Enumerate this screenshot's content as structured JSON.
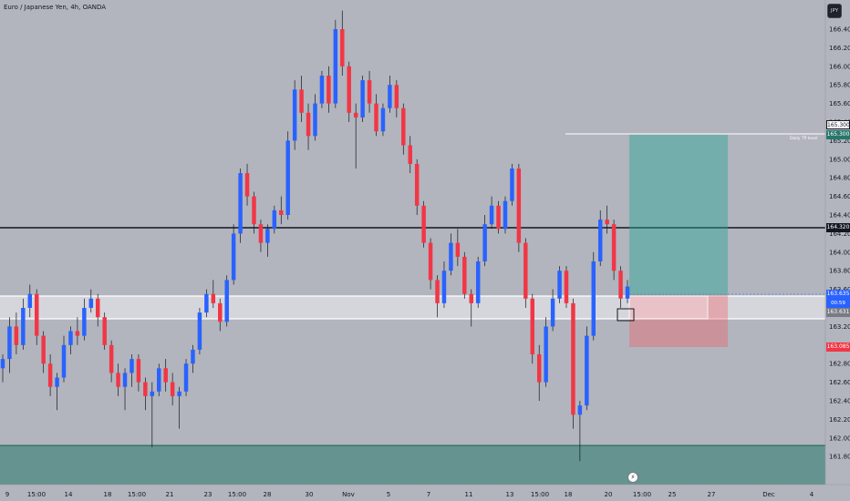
{
  "header": {
    "symbol_title": "Euro / Japanese Yen, 4h, OANDA",
    "currency_button": "JPY"
  },
  "colors": {
    "background": "#b2b5be",
    "bull_candle": "#2962ff",
    "bear_candle": "#f23645",
    "support_zone": "#26776a",
    "tp_zone": "#26a69a",
    "sl_zone": "#f7525f",
    "resistance_zone": "#ffffff"
  },
  "price_axis": {
    "labels": [
      "166.400",
      "166.200",
      "166.000",
      "165.800",
      "165.600",
      "165.400",
      "165.200",
      "165.000",
      "164.800",
      "164.600",
      "164.400",
      "164.200",
      "164.000",
      "163.800",
      "163.600",
      "163.400",
      "163.200",
      "163.000",
      "162.800",
      "162.600",
      "162.400",
      "162.200",
      "162.000",
      "161.800"
    ]
  },
  "time_axis": {
    "labels": [
      "9",
      "15:00",
      "14",
      "18",
      "15:00",
      "21",
      "23",
      "15:00",
      "28",
      "30",
      "Nov",
      "5",
      "7",
      "11",
      "13",
      "15:00",
      "18",
      "20",
      "15:00",
      "25",
      "27",
      "Dec",
      "4"
    ]
  },
  "levels": {
    "tp_label": "165.300",
    "tp_tag": "165.300",
    "tp_note": "Daily TP level",
    "horizontal_level": "164.320",
    "last_price": "163.635",
    "countdown": "00:59",
    "entry_price": "163.631",
    "stop_price": "163.085"
  },
  "chart_data": {
    "type": "candlestick",
    "ylim": [
      161.7,
      166.6
    ],
    "zones": {
      "support": [
        161.7,
        162.06
      ],
      "resistance": [
        163.4,
        163.64
      ],
      "take_profit_target": 165.3,
      "position_entry": 163.63,
      "position_stop": 163.085
    },
    "candles_ohlc": [
      [
        162.75,
        162.9,
        162.6,
        162.85
      ],
      [
        162.85,
        163.3,
        162.7,
        163.2
      ],
      [
        163.2,
        163.35,
        162.9,
        163.0
      ],
      [
        163.0,
        163.5,
        162.95,
        163.4
      ],
      [
        163.4,
        163.65,
        163.3,
        163.55
      ],
      [
        163.55,
        163.6,
        163.0,
        163.1
      ],
      [
        163.1,
        163.15,
        162.7,
        162.8
      ],
      [
        162.8,
        162.9,
        162.45,
        162.55
      ],
      [
        162.55,
        162.7,
        162.3,
        162.65
      ],
      [
        162.65,
        163.1,
        162.6,
        163.0
      ],
      [
        163.0,
        163.2,
        162.9,
        163.15
      ],
      [
        163.15,
        163.3,
        163.0,
        163.1
      ],
      [
        163.1,
        163.5,
        163.05,
        163.4
      ],
      [
        163.4,
        163.6,
        163.35,
        163.5
      ],
      [
        163.5,
        163.55,
        163.2,
        163.3
      ],
      [
        163.3,
        163.35,
        162.95,
        163.0
      ],
      [
        163.0,
        163.05,
        162.6,
        162.7
      ],
      [
        162.7,
        162.8,
        162.45,
        162.55
      ],
      [
        162.55,
        162.75,
        162.3,
        162.7
      ],
      [
        162.7,
        162.9,
        162.55,
        162.85
      ],
      [
        162.85,
        162.9,
        162.5,
        162.6
      ],
      [
        162.6,
        162.65,
        162.3,
        162.45
      ],
      [
        162.45,
        162.6,
        161.9,
        162.5
      ],
      [
        162.5,
        162.8,
        162.45,
        162.75
      ],
      [
        162.75,
        162.85,
        162.5,
        162.6
      ],
      [
        162.6,
        162.7,
        162.35,
        162.45
      ],
      [
        162.45,
        162.55,
        162.1,
        162.5
      ],
      [
        162.5,
        162.85,
        162.45,
        162.8
      ],
      [
        162.8,
        163.0,
        162.7,
        162.95
      ],
      [
        162.95,
        163.4,
        162.9,
        163.35
      ],
      [
        163.35,
        163.6,
        163.3,
        163.55
      ],
      [
        163.55,
        163.7,
        163.4,
        163.45
      ],
      [
        163.45,
        163.5,
        163.15,
        163.25
      ],
      [
        163.25,
        163.75,
        163.2,
        163.7
      ],
      [
        163.7,
        164.3,
        163.65,
        164.2
      ],
      [
        164.2,
        164.9,
        164.1,
        164.85
      ],
      [
        164.85,
        164.95,
        164.5,
        164.6
      ],
      [
        164.6,
        164.65,
        164.2,
        164.3
      ],
      [
        164.3,
        164.35,
        164.0,
        164.1
      ],
      [
        164.1,
        164.3,
        163.95,
        164.25
      ],
      [
        164.25,
        164.5,
        164.2,
        164.45
      ],
      [
        164.45,
        164.6,
        164.3,
        164.4
      ],
      [
        164.4,
        165.3,
        164.35,
        165.2
      ],
      [
        165.2,
        165.85,
        165.1,
        165.75
      ],
      [
        165.75,
        165.9,
        165.4,
        165.5
      ],
      [
        165.5,
        165.6,
        165.1,
        165.25
      ],
      [
        165.25,
        165.7,
        165.2,
        165.6
      ],
      [
        165.6,
        165.95,
        165.55,
        165.9
      ],
      [
        165.9,
        166.0,
        165.5,
        165.6
      ],
      [
        165.6,
        166.5,
        165.55,
        166.4
      ],
      [
        166.4,
        166.6,
        165.9,
        166.0
      ],
      [
        166.0,
        166.05,
        165.4,
        165.5
      ],
      [
        165.5,
        165.6,
        164.9,
        165.45
      ],
      [
        165.45,
        165.9,
        165.4,
        165.85
      ],
      [
        165.85,
        165.95,
        165.5,
        165.6
      ],
      [
        165.6,
        165.7,
        165.25,
        165.3
      ],
      [
        165.3,
        165.6,
        165.25,
        165.55
      ],
      [
        165.55,
        165.9,
        165.5,
        165.8
      ],
      [
        165.8,
        165.85,
        165.45,
        165.55
      ],
      [
        165.55,
        165.6,
        165.05,
        165.15
      ],
      [
        165.15,
        165.25,
        164.85,
        164.95
      ],
      [
        164.95,
        165.0,
        164.4,
        164.5
      ],
      [
        164.5,
        164.55,
        164.05,
        164.1
      ],
      [
        164.1,
        164.15,
        163.6,
        163.7
      ],
      [
        163.7,
        163.75,
        163.3,
        163.45
      ],
      [
        163.45,
        163.9,
        163.4,
        163.8
      ],
      [
        163.8,
        164.2,
        163.75,
        164.1
      ],
      [
        164.1,
        164.25,
        163.85,
        163.95
      ],
      [
        163.95,
        164.0,
        163.5,
        163.55
      ],
      [
        163.55,
        163.6,
        163.2,
        163.45
      ],
      [
        163.45,
        163.95,
        163.4,
        163.9
      ],
      [
        163.9,
        164.4,
        163.85,
        164.3
      ],
      [
        164.3,
        164.6,
        164.25,
        164.5
      ],
      [
        164.5,
        164.55,
        164.2,
        164.25
      ],
      [
        164.25,
        164.6,
        164.2,
        164.55
      ],
      [
        164.55,
        164.95,
        164.5,
        164.9
      ],
      [
        164.9,
        164.95,
        164.0,
        164.1
      ],
      [
        164.1,
        164.15,
        163.4,
        163.5
      ],
      [
        163.5,
        163.55,
        162.8,
        162.9
      ],
      [
        162.9,
        163.0,
        162.4,
        162.6
      ],
      [
        162.6,
        163.3,
        162.55,
        163.2
      ],
      [
        163.2,
        163.6,
        163.15,
        163.5
      ],
      [
        163.5,
        163.85,
        163.45,
        163.8
      ],
      [
        163.8,
        163.85,
        163.4,
        163.45
      ],
      [
        163.45,
        163.5,
        162.1,
        162.25
      ],
      [
        162.25,
        162.4,
        161.75,
        162.35
      ],
      [
        162.35,
        163.2,
        162.3,
        163.1
      ],
      [
        163.1,
        164.0,
        163.05,
        163.9
      ],
      [
        163.9,
        164.45,
        163.85,
        164.35
      ],
      [
        164.35,
        164.5,
        164.2,
        164.3
      ],
      [
        164.3,
        164.35,
        163.7,
        163.8
      ],
      [
        163.8,
        163.85,
        163.4,
        163.5
      ],
      [
        163.5,
        163.7,
        163.45,
        163.63
      ]
    ]
  }
}
